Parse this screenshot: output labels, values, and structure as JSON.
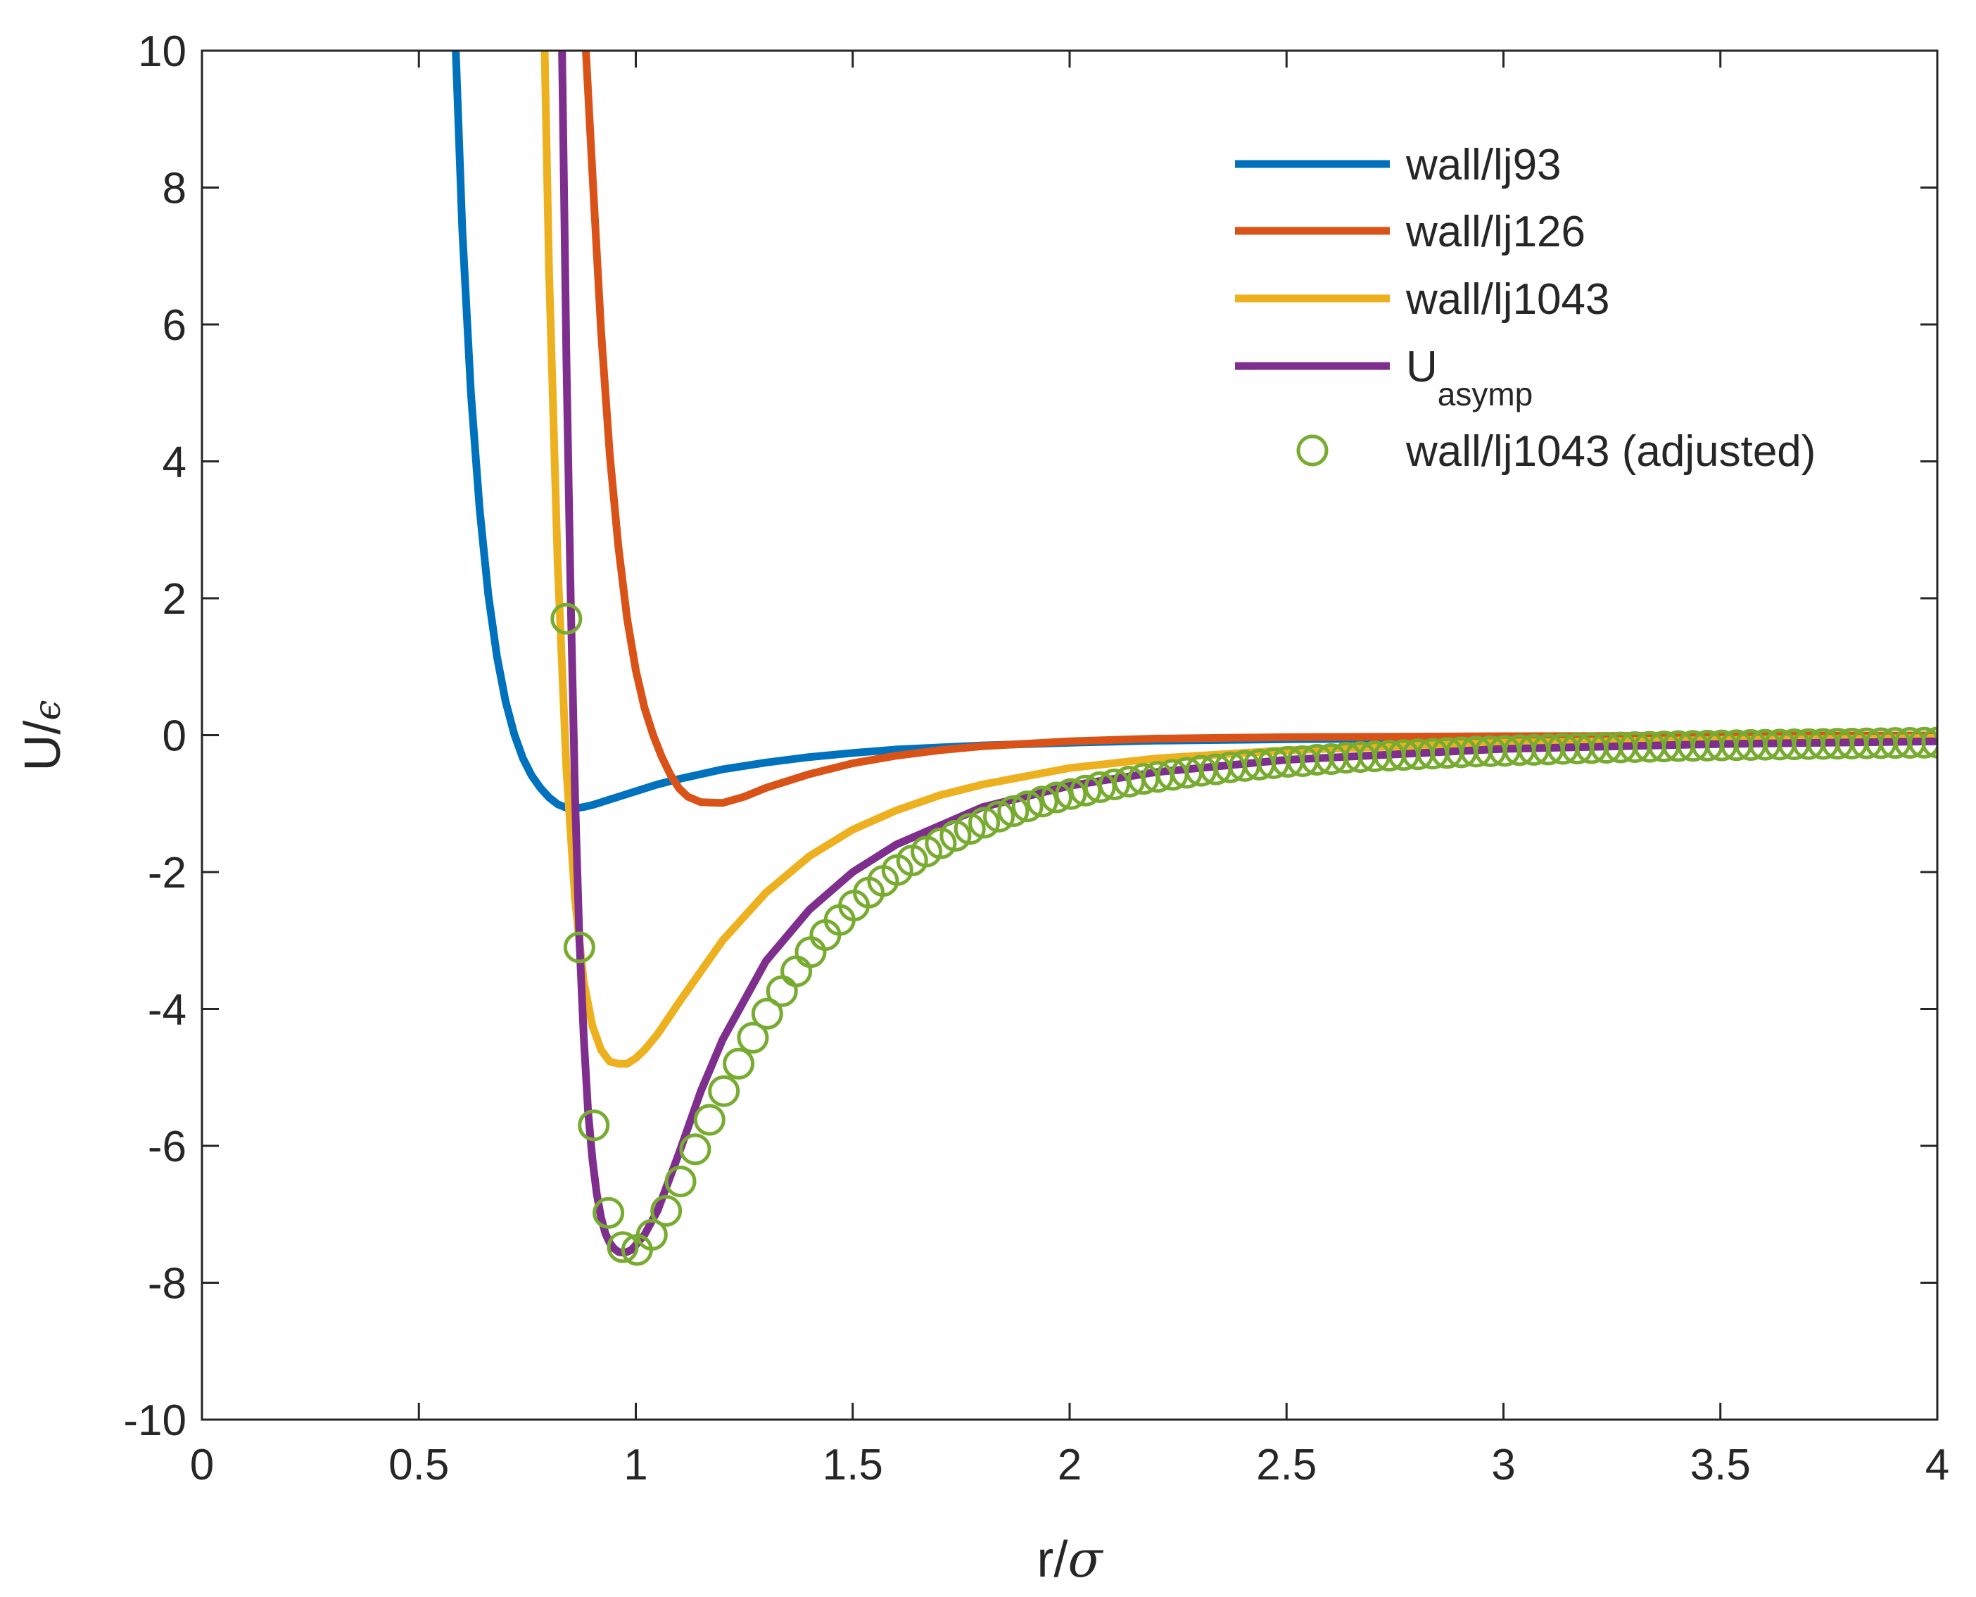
{
  "chart_data": {
    "type": "line",
    "title": "",
    "xlabel_main": "r/",
    "xlabel_symbol": "σ",
    "ylabel_main": "U/",
    "ylabel_symbol": "ϵ",
    "xlim": [
      0,
      4
    ],
    "ylim": [
      -10,
      10
    ],
    "grid": false,
    "legend_position": "top-right",
    "x_ticks": [
      0,
      0.5,
      1,
      1.5,
      2,
      2.5,
      3,
      3.5,
      4
    ],
    "x_tick_labels": [
      "0",
      "0.5",
      "1",
      "1.5",
      "2",
      "2.5",
      "3",
      "3.5",
      "4"
    ],
    "y_ticks": [
      -10,
      -8,
      -6,
      -4,
      -2,
      0,
      2,
      4,
      6,
      8,
      10
    ],
    "y_tick_labels": [
      "-10",
      "-8",
      "-6",
      "-4",
      "-2",
      "0",
      "2",
      "4",
      "6",
      "8",
      "10"
    ],
    "series": [
      {
        "name": "wall/lj93",
        "style": "line",
        "color": "#0072BD",
        "x": [
          0.585,
          0.6,
          0.62,
          0.64,
          0.66,
          0.68,
          0.7,
          0.72,
          0.74,
          0.76,
          0.78,
          0.8,
          0.82,
          0.84,
          0.86,
          0.88,
          0.9,
          0.95,
          1.0,
          1.05,
          1.1,
          1.2,
          1.3,
          1.4,
          1.5,
          1.6,
          1.8,
          2.0,
          2.2,
          2.5,
          3.0,
          3.5,
          4.0
        ],
        "y": [
          10.0,
          7.4,
          5.0,
          3.3,
          2.05,
          1.15,
          0.49,
          0.01,
          -0.34,
          -0.59,
          -0.77,
          -0.91,
          -1.01,
          -1.06,
          -1.07,
          -1.05,
          -1.02,
          -0.92,
          -0.82,
          -0.72,
          -0.64,
          -0.5,
          -0.4,
          -0.32,
          -0.26,
          -0.21,
          -0.15,
          -0.11,
          -0.08,
          -0.06,
          -0.04,
          -0.02,
          -0.015
        ]
      },
      {
        "name": "wall/lj126",
        "style": "line",
        "color": "#D95319",
        "x": [
          0.885,
          0.9,
          0.92,
          0.94,
          0.96,
          0.98,
          1.0,
          1.02,
          1.04,
          1.06,
          1.08,
          1.1,
          1.12,
          1.15,
          1.2,
          1.25,
          1.3,
          1.4,
          1.5,
          1.6,
          1.7,
          1.8,
          2.0,
          2.2,
          2.5,
          3.0,
          3.5,
          4.0
        ],
        "y": [
          10.0,
          8.2,
          5.9,
          4.1,
          2.75,
          1.7,
          0.95,
          0.4,
          0.0,
          -0.32,
          -0.58,
          -0.78,
          -0.9,
          -0.98,
          -0.99,
          -0.9,
          -0.77,
          -0.57,
          -0.41,
          -0.3,
          -0.22,
          -0.16,
          -0.09,
          -0.05,
          -0.03,
          -0.015,
          -0.01,
          -0.005
        ]
      },
      {
        "name": "wall/lj1043",
        "style": "line",
        "color": "#EDB120",
        "x": [
          0.79,
          0.8,
          0.82,
          0.84,
          0.86,
          0.88,
          0.9,
          0.92,
          0.94,
          0.96,
          0.98,
          1.0,
          1.02,
          1.05,
          1.1,
          1.15,
          1.2,
          1.3,
          1.4,
          1.5,
          1.6,
          1.7,
          1.8,
          2.0,
          2.2,
          2.5,
          3.0,
          3.5,
          4.0
        ],
        "y": [
          10.0,
          6.8,
          2.5,
          -0.5,
          -2.4,
          -3.6,
          -4.25,
          -4.6,
          -4.77,
          -4.8,
          -4.8,
          -4.72,
          -4.6,
          -4.37,
          -3.9,
          -3.45,
          -3.0,
          -2.3,
          -1.77,
          -1.38,
          -1.1,
          -0.88,
          -0.72,
          -0.48,
          -0.34,
          -0.22,
          -0.11,
          -0.07,
          -0.04
        ]
      },
      {
        "name": "U",
        "name_subscript": "asymp",
        "style": "line",
        "color": "#7E2F8E",
        "x": [
          0.83,
          0.84,
          0.85,
          0.86,
          0.87,
          0.88,
          0.89,
          0.9,
          0.91,
          0.92,
          0.93,
          0.94,
          0.95,
          0.96,
          0.97,
          0.98,
          0.99,
          1.0,
          1.02,
          1.05,
          1.1,
          1.15,
          1.2,
          1.3,
          1.4,
          1.5,
          1.6,
          1.8,
          2.0,
          2.2,
          2.5,
          3.0,
          3.5,
          4.0
        ],
        "y": [
          10.0,
          5.5,
          2.0,
          -0.9,
          -3.0,
          -4.4,
          -5.5,
          -6.2,
          -6.7,
          -7.05,
          -7.28,
          -7.42,
          -7.5,
          -7.55,
          -7.56,
          -7.55,
          -7.52,
          -7.45,
          -7.3,
          -6.95,
          -6.1,
          -5.2,
          -4.45,
          -3.3,
          -2.55,
          -2.0,
          -1.6,
          -1.05,
          -0.74,
          -0.54,
          -0.36,
          -0.2,
          -0.13,
          -0.09
        ]
      },
      {
        "name": "wall/lj1043 (adjusted)",
        "style": "markers",
        "color": "#77AC30",
        "x": [
          0.84,
          0.87,
          0.903,
          0.937,
          0.97,
          1.003,
          1.037,
          1.07,
          1.103,
          1.137,
          1.17,
          1.203,
          1.237,
          1.27,
          1.303,
          1.337,
          1.37,
          1.403,
          1.437,
          1.47,
          1.503,
          1.537,
          1.57,
          1.603,
          1.637,
          1.67,
          1.703,
          1.737,
          1.77,
          1.803,
          1.837,
          1.87,
          1.903,
          1.937,
          1.97,
          2.003,
          2.037,
          2.07,
          2.103,
          2.137,
          2.17,
          2.203,
          2.237,
          2.27,
          2.303,
          2.337,
          2.37,
          2.403,
          2.437,
          2.47,
          2.503,
          2.537,
          2.57,
          2.603,
          2.637,
          2.67,
          2.703,
          2.737,
          2.77,
          2.803,
          2.837,
          2.87,
          2.903,
          2.937,
          2.97,
          3.003,
          3.037,
          3.07,
          3.103,
          3.137,
          3.17,
          3.203,
          3.237,
          3.27,
          3.303,
          3.337,
          3.37,
          3.403,
          3.437,
          3.47,
          3.503,
          3.537,
          3.57,
          3.603,
          3.637,
          3.67,
          3.703,
          3.737,
          3.77,
          3.803,
          3.837,
          3.87,
          3.903,
          3.937,
          3.97,
          4.0
        ],
        "y": [
          1.7,
          -3.1,
          -5.7,
          -6.98,
          -7.48,
          -7.52,
          -7.3,
          -6.95,
          -6.52,
          -6.05,
          -5.62,
          -5.2,
          -4.8,
          -4.42,
          -4.07,
          -3.74,
          -3.45,
          -3.17,
          -2.92,
          -2.7,
          -2.49,
          -2.3,
          -2.13,
          -1.97,
          -1.83,
          -1.7,
          -1.58,
          -1.47,
          -1.37,
          -1.28,
          -1.19,
          -1.11,
          -1.04,
          -0.97,
          -0.91,
          -0.86,
          -0.81,
          -0.76,
          -0.72,
          -0.68,
          -0.64,
          -0.61,
          -0.58,
          -0.55,
          -0.52,
          -0.5,
          -0.47,
          -0.45,
          -0.43,
          -0.41,
          -0.39,
          -0.38,
          -0.36,
          -0.35,
          -0.33,
          -0.32,
          -0.31,
          -0.3,
          -0.29,
          -0.28,
          -0.27,
          -0.26,
          -0.25,
          -0.24,
          -0.235,
          -0.23,
          -0.22,
          -0.215,
          -0.21,
          -0.2,
          -0.195,
          -0.19,
          -0.185,
          -0.18,
          -0.175,
          -0.17,
          -0.165,
          -0.16,
          -0.157,
          -0.153,
          -0.15,
          -0.146,
          -0.143,
          -0.14,
          -0.137,
          -0.134,
          -0.131,
          -0.128,
          -0.125,
          -0.123,
          -0.12,
          -0.118,
          -0.115,
          -0.113,
          -0.111,
          -0.109
        ]
      }
    ]
  }
}
